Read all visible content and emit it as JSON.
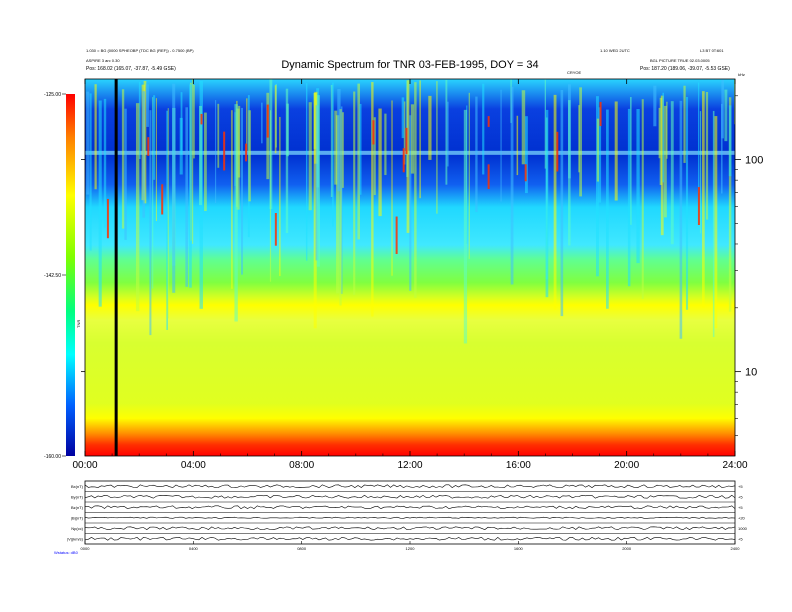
{
  "header": {
    "title": "Dynamic Spectrum for TNR 03-FEB-1995, DOY = 34",
    "left_line1": "1.030 = BG (0000 SPHEOBP (TDC BG (REF)) - 0.7500 (BP)",
    "left_line2": "ASPIRE 3 arc 0.30",
    "left_pos": "Pos:    168.02 (165.07, -37.87, -5.49 GSE)",
    "right_line1": "1.10 WED 2UTC",
    "right_line1b": "L3 B7 0T:601",
    "right_line2": "BGL PICTURE TRUE 02.03.0005",
    "right_pos": "Pos:    187.20 (189.06, -39.07, -5.53 GSE)",
    "mid_tag": "CRYOE",
    "units": "kHz"
  },
  "colorbar": {
    "ticks": [
      "-125.00",
      "-142.50",
      "-160.00"
    ],
    "label": "TNR"
  },
  "footer": {
    "left": "Wstatus:   dB0"
  },
  "chart_data": [
    {
      "type": "heatmap",
      "title": "Dynamic Spectrum for TNR 03-FEB-1995, DOY = 34",
      "x_ticks": [
        "00:00",
        "04:00",
        "08:00",
        "12:00",
        "16:00",
        "20:00",
        "24:00"
      ],
      "x_range_hours": [
        0,
        24
      ],
      "y_scale": "log",
      "y_range_khz": [
        4,
        240
      ],
      "y_ticks": [
        "100",
        "10"
      ],
      "color_range": [
        -160,
        -125
      ],
      "colormap": [
        "#0000c0",
        "#0040ff",
        "#00e0ff",
        "#00ff80",
        "#a0ff00",
        "#ffff00",
        "#ff8000",
        "#ff0000"
      ],
      "data_gap_marker_hours": 1.15
    },
    {
      "type": "line",
      "panels": [
        {
          "left": "Bx(nT)",
          "right": "+5"
        },
        {
          "left": "By(nT)",
          "right": "+5"
        },
        {
          "left": "Bz(nT)",
          "right": "+5"
        },
        {
          "left": "|B|(nT)",
          "right": "+20"
        },
        {
          "left": "Np(cc)",
          "right": "1000"
        },
        {
          "left": "|V|(km/s)",
          "right": "+5"
        }
      ],
      "x_ticks": [
        "0000",
        "0400",
        "0800",
        "1200",
        "1600",
        "2000",
        "2400"
      ]
    }
  ]
}
